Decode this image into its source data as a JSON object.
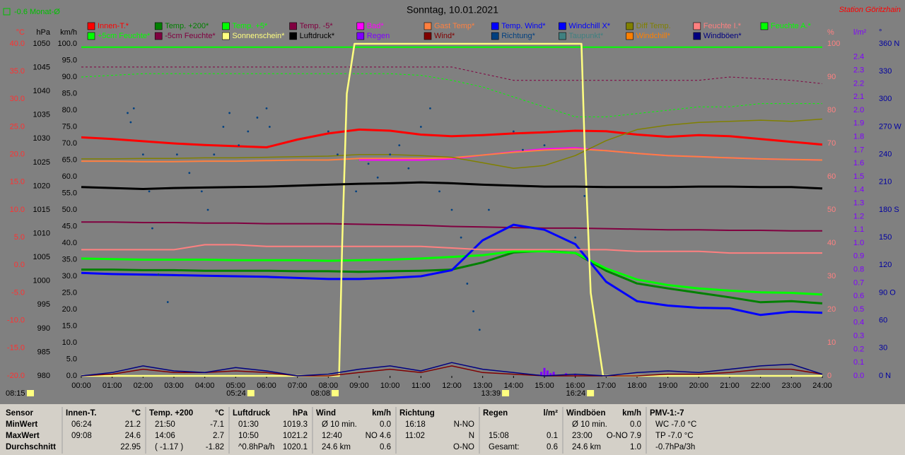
{
  "chart_data": {
    "type": "line",
    "title": "Sonntag, 10.01.2021",
    "subtitle": "-0.6 Monat-Ø",
    "station": "Station Göritzhain",
    "sun_duration": "08:15",
    "annotations": [
      {
        "text": "05:24",
        "x": 5.4
      },
      {
        "text": "08:08",
        "x": 8.13
      },
      {
        "text": "13:39",
        "x": 13.65
      },
      {
        "text": "16:24",
        "x": 16.4
      }
    ],
    "axis_units": {
      "y": "°C",
      "y3": "hPa",
      "y4": "km/h",
      "y2": "%",
      "y5": "l/m²",
      "y6": "°"
    },
    "axis_colors": {
      "y": "#ff3030",
      "y3": "#000000",
      "y4": "#000000",
      "y2": "#ff8080",
      "y5": "#8000ff",
      "y6": "#0000a0"
    },
    "xlim": [
      0,
      24
    ],
    "xticks": [
      {
        "value": 0,
        "label": "00:00"
      },
      {
        "value": 1,
        "label": "01:00"
      },
      {
        "value": 2,
        "label": "02:00"
      },
      {
        "value": 3,
        "label": "03:00"
      },
      {
        "value": 4,
        "label": "04:00"
      },
      {
        "value": 5,
        "label": "05:00"
      },
      {
        "value": 6,
        "label": "06:00"
      },
      {
        "value": 7,
        "label": "07:00"
      },
      {
        "value": 8,
        "label": "08:00"
      },
      {
        "value": 9,
        "label": "09:00"
      },
      {
        "value": 10,
        "label": "10:00"
      },
      {
        "value": 11,
        "label": "11:00"
      },
      {
        "value": 12,
        "label": "12:00"
      },
      {
        "value": 13,
        "label": "13:00"
      },
      {
        "value": 14,
        "label": "14:00"
      },
      {
        "value": 15,
        "label": "15:00"
      },
      {
        "value": 16,
        "label": "16:00"
      },
      {
        "value": 17,
        "label": "17:00"
      },
      {
        "value": 18,
        "label": "18:00"
      },
      {
        "value": 19,
        "label": "19:00"
      },
      {
        "value": 20,
        "label": "20:00"
      },
      {
        "value": 21,
        "label": "21:00"
      },
      {
        "value": 22,
        "label": "22:00"
      },
      {
        "value": 23,
        "label": "23:00"
      },
      {
        "value": 24,
        "label": "24:00"
      }
    ],
    "ylim": [
      -20,
      40
    ],
    "yticks": [
      {
        "value": -20,
        "label": "-20.0"
      },
      {
        "value": -15,
        "label": "-15.0"
      },
      {
        "value": -10,
        "label": "-10.0"
      },
      {
        "value": -5,
        "label": "-5.0"
      },
      {
        "value": 0,
        "label": "0.0"
      },
      {
        "value": 5,
        "label": "5.0"
      },
      {
        "value": 10,
        "label": "10.0"
      },
      {
        "value": 15,
        "label": "15.0"
      },
      {
        "value": 20,
        "label": "20.0"
      },
      {
        "value": 25,
        "label": "25.0"
      },
      {
        "value": 30,
        "label": "30.0"
      },
      {
        "value": 35,
        "label": "35.0"
      },
      {
        "value": 40,
        "label": "40.0"
      }
    ],
    "y3lim": [
      980,
      1050
    ],
    "y3ticks": [
      980,
      985,
      990,
      995,
      1000,
      1005,
      1010,
      1015,
      1020,
      1025,
      1030,
      1035,
      1040,
      1045,
      1050
    ],
    "y4lim": [
      0,
      100
    ],
    "y4ticks": [
      {
        "value": 0,
        "label": "0.0"
      },
      {
        "value": 5,
        "label": "5.0"
      },
      {
        "value": 10,
        "label": "10.0"
      },
      {
        "value": 15,
        "label": "15.0"
      },
      {
        "value": 20,
        "label": "20.0"
      },
      {
        "value": 25,
        "label": "25.0"
      },
      {
        "value": 30,
        "label": "30.0"
      },
      {
        "value": 35,
        "label": "35.0"
      },
      {
        "value": 40,
        "label": "40.0"
      },
      {
        "value": 45,
        "label": "45.0"
      },
      {
        "value": 50,
        "label": "50.0"
      },
      {
        "value": 55,
        "label": "55.0"
      },
      {
        "value": 60,
        "label": "60.0"
      },
      {
        "value": 65,
        "label": "65.0"
      },
      {
        "value": 70,
        "label": "70.0"
      },
      {
        "value": 75,
        "label": "75.0"
      },
      {
        "value": 80,
        "label": "80.0"
      },
      {
        "value": 85,
        "label": "85.0"
      },
      {
        "value": 90,
        "label": "90.0"
      },
      {
        "value": 95,
        "label": "95.0"
      },
      {
        "value": 100,
        "label": "100.0"
      }
    ],
    "y2lim": [
      0,
      100
    ],
    "y2ticks": [
      0,
      10,
      20,
      30,
      40,
      50,
      60,
      70,
      80,
      90,
      100
    ],
    "y5lim": [
      0,
      2.5
    ],
    "y5ticks": [
      {
        "value": 0,
        "label": "0.0"
      },
      0.1,
      0.2,
      0.3,
      0.4,
      0.5,
      0.6,
      0.7,
      0.8,
      0.9,
      {
        "value": 1,
        "label": "1.0"
      },
      1.1,
      1.2,
      1.3,
      1.4,
      1.5,
      1.6,
      1.7,
      1.8,
      1.9,
      {
        "value": 2,
        "label": "2.0"
      },
      2.1,
      2.2,
      2.3,
      2.4
    ],
    "y6lim": [
      0,
      360
    ],
    "y6ticks": [
      {
        "value": 0,
        "label": "0 N"
      },
      30,
      60,
      {
        "value": 90,
        "label": "90 O"
      },
      120,
      150,
      {
        "value": 180,
        "label": "180 S"
      },
      210,
      240,
      {
        "value": 270,
        "label": "270 W"
      },
      300,
      330,
      {
        "value": 360,
        "label": "360 N"
      }
    ],
    "x": [
      0,
      1,
      2,
      3,
      4,
      5,
      6,
      7,
      8,
      9,
      10,
      11,
      12,
      13,
      14,
      15,
      16,
      17,
      18,
      19,
      20,
      21,
      22,
      23,
      24
    ],
    "series": [
      {
        "name": "Innen-T.*",
        "color": "#ff0000",
        "axis": "y",
        "width": 3,
        "values": [
          23.1,
          22.8,
          22.4,
          22.0,
          21.7,
          21.5,
          21.3,
          22.7,
          23.8,
          24.5,
          24.3,
          23.6,
          23.3,
          23.5,
          23.8,
          24.0,
          24.3,
          24.2,
          23.6,
          23.2,
          23.5,
          23.3,
          22.8,
          22.3,
          21.8
        ]
      },
      {
        "name": "Temp. +200*",
        "color": "#008000",
        "axis": "y",
        "width": 3,
        "values": [
          -0.8,
          -0.8,
          -0.9,
          -0.9,
          -1.0,
          -1.0,
          -1.0,
          -1.1,
          -1.1,
          -1.2,
          -1.1,
          -1.0,
          -0.8,
          0.5,
          2.3,
          2.6,
          2.2,
          -1.0,
          -3.3,
          -4.2,
          -5.0,
          -5.8,
          -6.7,
          -6.5,
          -6.9
        ]
      },
      {
        "name": "Temp. +5*",
        "color": "#00ff00",
        "axis": "y",
        "width": 3,
        "values": [
          1.2,
          1.1,
          1.0,
          1.0,
          1.0,
          0.9,
          0.9,
          0.9,
          0.8,
          0.9,
          1.0,
          1.2,
          1.5,
          1.8,
          2.5,
          2.5,
          2.2,
          -0.6,
          -2.6,
          -3.6,
          -4.2,
          -4.6,
          -4.9,
          -5.0,
          -5.3
        ]
      },
      {
        "name": "Temp. -5*",
        "color": "#800040",
        "axis": "y",
        "width": 2,
        "values": [
          7.8,
          7.8,
          7.7,
          7.7,
          7.6,
          7.6,
          7.5,
          7.5,
          7.5,
          7.4,
          7.3,
          7.2,
          7.0,
          6.9,
          6.8,
          6.7,
          6.7,
          6.6,
          6.5,
          6.4,
          6.4,
          6.3,
          6.3,
          6.2,
          6.2
        ]
      },
      {
        "name": "Bad*",
        "color": "#ff00ff",
        "axis": "y",
        "width": 2,
        "values": [
          null,
          null,
          null,
          null,
          null,
          null,
          null,
          null,
          null,
          19.0,
          19.0,
          19.0,
          19.2,
          19.9,
          20.5,
          21.0,
          21.2,
          20.7,
          20.2,
          19.8,
          19.6,
          19.4,
          19.2,
          19.1,
          19.0
        ]
      },
      {
        "name": "Gast Temp*",
        "color": "#ff8040",
        "axis": "y",
        "width": 2,
        "values": [
          18.8,
          18.8,
          18.7,
          18.7,
          18.8,
          18.8,
          18.9,
          19.0,
          19.0,
          19.3,
          19.3,
          19.3,
          19.4,
          19.9,
          20.4,
          20.8,
          21.0,
          20.7,
          20.2,
          19.8,
          19.6,
          19.4,
          19.2,
          19.1,
          19.0
        ]
      },
      {
        "name": "Temp. Wind*",
        "color": "#0000ff",
        "axis": "y",
        "width": 3,
        "values": [
          -1.4,
          -1.6,
          -1.7,
          -1.8,
          -1.9,
          -2.0,
          -2.1,
          -2.3,
          -2.5,
          -2.5,
          -2.3,
          -2.0,
          -0.9,
          4.5,
          7.3,
          6.4,
          3.8,
          -3.0,
          -6.5,
          -7.3,
          -7.7,
          -7.8,
          -9.0,
          -8.4,
          -8.6
        ]
      },
      {
        "name": "Windchill X*",
        "color": "#0000ff"
      },
      {
        "name": "Diff Temp.",
        "color": "#808000",
        "axis": "y",
        "width": 1.5,
        "values": [
          19.2,
          19.2,
          19.3,
          19.3,
          19.4,
          19.4,
          19.5,
          19.6,
          19.7,
          20.0,
          20.0,
          19.8,
          19.5,
          18.5,
          17.5,
          18.0,
          19.8,
          22.5,
          24.5,
          25.3,
          25.8,
          26.0,
          26.2,
          26.0,
          26.4
        ]
      },
      {
        "name": "Feuchte I.*",
        "color": "#ff8080",
        "axis": "y2",
        "width": 2,
        "values": [
          38,
          38,
          38,
          38,
          39.5,
          39.5,
          39,
          39,
          39,
          39,
          39,
          39,
          38.5,
          38,
          38,
          38,
          38,
          38,
          37.5,
          37.5,
          37.5,
          37,
          37,
          37,
          37
        ]
      },
      {
        "name": "Feuchte A.*",
        "color": "#00ff00",
        "axis": "y2",
        "width": 1,
        "dash": true,
        "values": [
          90,
          90.5,
          91,
          91,
          91,
          91,
          91,
          91,
          91,
          91,
          91,
          90.5,
          89,
          87,
          84,
          81,
          78,
          78,
          79,
          80,
          81,
          81,
          82,
          82,
          82
        ]
      },
      {
        "name": "+5cm Feuchte*",
        "color": "#00ff00",
        "axis": "y2",
        "width": 2,
        "values": [
          99,
          99,
          99,
          99,
          99,
          99,
          99,
          99,
          99,
          99,
          99,
          99,
          99,
          99,
          99,
          99,
          99,
          99,
          99,
          99,
          99,
          99,
          99,
          99,
          99
        ]
      },
      {
        "name": "-5cm Feuchte*",
        "color": "#800040",
        "axis": "y2",
        "width": 1,
        "dash": true,
        "values": [
          93,
          93,
          93,
          93,
          93,
          93,
          93,
          93,
          93,
          93,
          93,
          93,
          93,
          91,
          89,
          89,
          89,
          89,
          89,
          89,
          89,
          90,
          89.5,
          89,
          88
        ]
      },
      {
        "name": "Sonnenschein*",
        "color": "#ffff80",
        "axis": "y2",
        "width": 2.5,
        "x": [
          0,
          8.35,
          8.45,
          8.6,
          8.85,
          16.2,
          16.3,
          16.5,
          16.9,
          24
        ],
        "values": [
          0,
          0,
          40,
          85,
          100,
          100,
          70,
          25,
          0,
          0
        ]
      },
      {
        "name": "Luftdruck*",
        "color": "#000000",
        "axis": "y3",
        "width": 3,
        "values": [
          1019.8,
          1019.6,
          1019.4,
          1019.6,
          1019.7,
          1019.8,
          1019.9,
          1020.1,
          1020.3,
          1020.5,
          1020.6,
          1020.8,
          1020.6,
          1020.3,
          1020.1,
          1019.9,
          1019.9,
          1019.8,
          1019.8,
          1019.8,
          1019.9,
          1019.9,
          1019.8,
          1019.8,
          1019.5
        ]
      },
      {
        "name": "Regen",
        "color": "#8000ff",
        "axis": "y5",
        "type": "bar",
        "x": [
          14.8,
          14.9,
          15.0,
          15.1,
          15.2,
          15.3,
          15.5,
          15.7,
          16.0
        ],
        "values": [
          0.01,
          0.03,
          0.06,
          0.04,
          0.02,
          0.03,
          0.01,
          0.02,
          0.01
        ]
      },
      {
        "name": "Wind*",
        "color": "#800000",
        "axis": "y4",
        "width": 1.5,
        "values": [
          0,
          0.5,
          2,
          1,
          1,
          1.5,
          1,
          0,
          0,
          1,
          2,
          1,
          3,
          1,
          0.5,
          0,
          0,
          0,
          0,
          0.5,
          0.5,
          1,
          2,
          2,
          0.5
        ]
      },
      {
        "name": "Richtung*",
        "color": "#004080",
        "axis": "y6",
        "type": "scatter",
        "x": [
          1.5,
          1.6,
          1.7,
          2.0,
          2.2,
          2.3,
          2.5,
          2.8,
          3.1,
          3.5,
          3.9,
          4.1,
          4.3,
          4.6,
          4.8,
          5.1,
          5.4,
          5.7,
          6.0,
          6.1,
          8.0,
          8.3,
          8.9,
          9.3,
          9.6,
          10.0,
          10.3,
          10.6,
          11.0,
          11.3,
          11.6,
          12.0,
          12.3,
          12.5,
          12.7,
          12.9,
          13.2,
          14.0,
          14.3,
          15.0,
          16.0,
          16.3
        ],
        "values": [
          285,
          275,
          290,
          240,
          200,
          160,
          110,
          80,
          240,
          220,
          200,
          180,
          240,
          270,
          285,
          250,
          265,
          280,
          290,
          270,
          265,
          240,
          200,
          230,
          215,
          240,
          250,
          225,
          270,
          290,
          200,
          180,
          150,
          100,
          70,
          50,
          180,
          265,
          245,
          250,
          150,
          195
        ]
      },
      {
        "name": "Taupunkt*",
        "color": "#408080"
      },
      {
        "name": "Windchill*",
        "color": "#ff8000"
      },
      {
        "name": "Windböen*",
        "color": "#000080",
        "axis": "y4",
        "width": 1.5,
        "values": [
          0,
          1,
          3,
          1.5,
          1,
          2.5,
          1.5,
          0,
          0.5,
          2,
          3,
          1.5,
          4,
          2,
          1,
          0,
          0.5,
          0,
          1,
          1.5,
          1,
          2,
          3,
          3.5,
          0.5
        ]
      }
    ]
  },
  "table": {
    "row_labels": [
      "Sensor",
      "MinWert",
      "MaxWert",
      "Durchschnitt"
    ],
    "sections": [
      {
        "title": "Innen-T.",
        "unit": "°C",
        "rows": [
          {
            "time": "06:24",
            "value": "21.2"
          },
          {
            "time": "09:08",
            "value": "24.6"
          },
          {
            "value": "22.95"
          }
        ]
      },
      {
        "title": "Temp. +200",
        "unit": "°C",
        "rows": [
          {
            "time": "21:50",
            "value": "-7.1"
          },
          {
            "time": "14:06",
            "value": "2.7"
          },
          {
            "time": "( -1.17 )",
            "value": "-1.82"
          }
        ]
      },
      {
        "title": "Luftdruck",
        "unit": "hPa",
        "rows": [
          {
            "time": "01:30",
            "value": "1019.3"
          },
          {
            "time": "10:50",
            "value": "1021.2"
          },
          {
            "time": "^0.8hPa/h",
            "value": "1020.1"
          }
        ]
      },
      {
        "title": "Wind",
        "unit": "km/h",
        "rows": [
          {
            "time": "Ø 10 min.",
            "value": "0.0"
          },
          {
            "time": "12:40",
            "value": "NO 4.6"
          },
          {
            "time": "24.6 km",
            "value": "0.6"
          }
        ]
      },
      {
        "title": "Richtung",
        "rows": [
          {
            "time": "16:18",
            "value": "N-NO"
          },
          {
            "time": "11:02",
            "value": "N"
          },
          {
            "value": "O-NO"
          }
        ]
      },
      {
        "title": "Regen",
        "unit": "l/m²",
        "rows": [
          {},
          {
            "time": "15:08",
            "value": "0.1"
          },
          {
            "time": "Gesamt:",
            "value": "0.6"
          }
        ]
      },
      {
        "title": "Windböen",
        "unit": "km/h",
        "rows": [
          {
            "time": "Ø 10 min.",
            "value": "0.0"
          },
          {
            "time": "23:00",
            "value": "O-NO 7.9"
          },
          {
            "time": "24.6 km",
            "value": "1.0"
          }
        ]
      },
      {
        "title": "PMV-1:-7",
        "rows": [
          {
            "time": "WC -7.0 °C"
          },
          {
            "time": "TP -7.0 °C"
          },
          {
            "time": "-0.7hPa/3h"
          }
        ]
      }
    ]
  }
}
